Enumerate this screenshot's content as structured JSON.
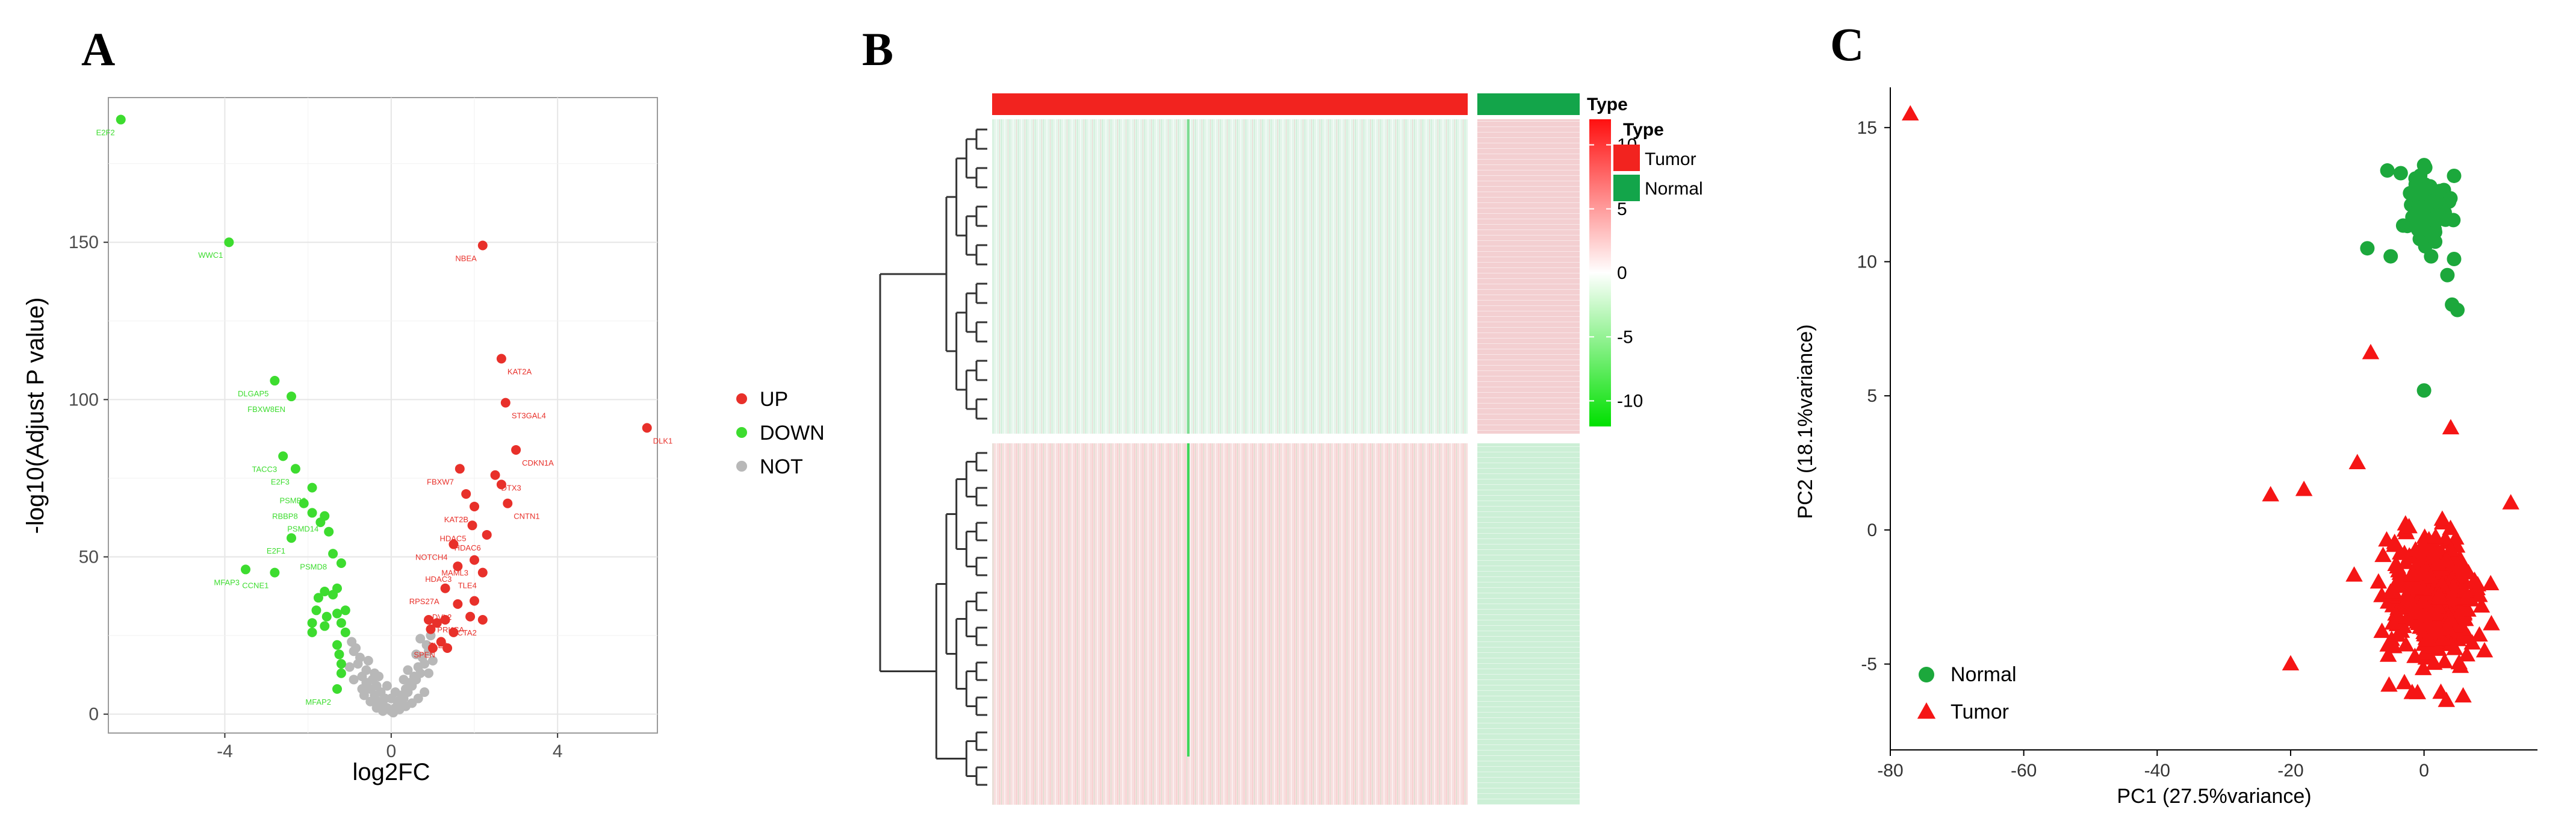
{
  "panels": [
    "A",
    "B",
    "C"
  ],
  "chart_data": [
    {
      "type": "scatter",
      "id": "volcano",
      "xlabel": "log2FC",
      "ylabel": "-log10(Adjust P value)",
      "xlim": [
        -6.8,
        6.4
      ],
      "ylim": [
        -6,
        196
      ],
      "xticks": [
        -4,
        0,
        4
      ],
      "yticks": [
        0,
        50,
        100,
        150
      ],
      "grid": true,
      "legend": {
        "position": "right",
        "entries": [
          {
            "label": "UP",
            "color": "#e8302a"
          },
          {
            "label": "DOWN",
            "color": "#3ddc2f"
          },
          {
            "label": "NOT",
            "color": "#b8b8b8"
          }
        ]
      },
      "series": [
        {
          "name": "UP",
          "color": "#e8302a",
          "points": [
            [
              2.2,
              149
            ],
            [
              2.65,
              113
            ],
            [
              2.75,
              99
            ],
            [
              3.0,
              84
            ],
            [
              6.15,
              91
            ],
            [
              2.5,
              76
            ],
            [
              1.65,
              78
            ],
            [
              2.8,
              67
            ],
            [
              1.8,
              70
            ],
            [
              2.65,
              73
            ],
            [
              2.0,
              66
            ],
            [
              1.95,
              60
            ],
            [
              1.5,
              54
            ],
            [
              2.3,
              57
            ],
            [
              1.6,
              47
            ],
            [
              2.0,
              49
            ],
            [
              2.2,
              45
            ],
            [
              1.3,
              40
            ],
            [
              1.6,
              35
            ],
            [
              1.9,
              31
            ],
            [
              2.0,
              36
            ],
            [
              1.1,
              29
            ],
            [
              1.3,
              30
            ],
            [
              1.2,
              23
            ],
            [
              1.5,
              26
            ],
            [
              2.2,
              30
            ],
            [
              1.0,
              21
            ],
            [
              0.9,
              30
            ],
            [
              0.95,
              27
            ],
            [
              1.35,
              21
            ]
          ]
        },
        {
          "name": "DOWN",
          "color": "#3ddc2f",
          "points": [
            [
              -6.5,
              189
            ],
            [
              -3.9,
              150
            ],
            [
              -2.8,
              106
            ],
            [
              -2.4,
              101
            ],
            [
              -2.6,
              82
            ],
            [
              -2.3,
              78
            ],
            [
              -1.9,
              72
            ],
            [
              -2.1,
              67
            ],
            [
              -1.9,
              64
            ],
            [
              -1.6,
              63
            ],
            [
              -1.7,
              61
            ],
            [
              -1.5,
              58
            ],
            [
              -1.4,
              51
            ],
            [
              -1.2,
              48
            ],
            [
              -2.4,
              56
            ],
            [
              -3.5,
              46
            ],
            [
              -2.8,
              45
            ],
            [
              -1.75,
              37
            ],
            [
              -1.6,
              39
            ],
            [
              -1.4,
              38
            ],
            [
              -1.3,
              40
            ],
            [
              -1.8,
              33
            ],
            [
              -1.55,
              31
            ],
            [
              -1.3,
              32
            ],
            [
              -1.9,
              29
            ],
            [
              -1.6,
              28
            ],
            [
              -1.1,
              33
            ],
            [
              -1.2,
              29
            ],
            [
              -1.9,
              26
            ],
            [
              -1.1,
              26
            ],
            [
              -1.3,
              22
            ],
            [
              -1.2,
              13
            ],
            [
              -1.25,
              19
            ],
            [
              -1.2,
              16
            ],
            [
              -1.3,
              8
            ]
          ]
        },
        {
          "name": "NOT",
          "color": "#b8b8b8",
          "points": [
            [
              -0.9,
              20
            ],
            [
              -0.8,
              16
            ],
            [
              -0.7,
              12
            ],
            [
              -0.6,
              10
            ],
            [
              -0.5,
              8
            ],
            [
              -0.4,
              6
            ],
            [
              -0.3,
              4
            ],
            [
              -0.2,
              3
            ],
            [
              -0.1,
              2
            ],
            [
              0.0,
              1
            ],
            [
              0.1,
              2
            ],
            [
              0.2,
              3
            ],
            [
              0.3,
              5
            ],
            [
              0.4,
              7
            ],
            [
              0.5,
              9
            ],
            [
              0.6,
              11
            ],
            [
              0.7,
              13
            ],
            [
              0.8,
              16
            ],
            [
              0.9,
              20
            ],
            [
              -0.75,
              18
            ],
            [
              -0.6,
              14
            ],
            [
              -0.45,
              11
            ],
            [
              -0.35,
              9
            ],
            [
              -0.25,
              7
            ],
            [
              -0.15,
              5
            ],
            [
              0.15,
              4
            ],
            [
              0.25,
              6
            ],
            [
              0.35,
              8
            ],
            [
              0.45,
              10
            ],
            [
              0.55,
              12
            ],
            [
              0.65,
              15
            ],
            [
              0.75,
              18
            ],
            [
              0.85,
              22
            ],
            [
              0.95,
              25
            ],
            [
              -0.95,
              23
            ],
            [
              -0.85,
              21
            ],
            [
              -0.65,
              6
            ],
            [
              -0.5,
              4
            ],
            [
              -0.35,
              2
            ],
            [
              -0.2,
              1
            ],
            [
              0.05,
              0.5
            ],
            [
              0.2,
              1.5
            ],
            [
              0.35,
              2.5
            ],
            [
              0.5,
              3.5
            ],
            [
              0.65,
              5
            ],
            [
              0.8,
              7
            ],
            [
              -0.55,
              17
            ],
            [
              -0.4,
              13
            ],
            [
              0.4,
              14
            ],
            [
              0.6,
              19
            ],
            [
              0.7,
              24
            ],
            [
              -0.7,
              8
            ],
            [
              -0.3,
              12
            ],
            [
              0.3,
              11
            ],
            [
              0.1,
              7
            ],
            [
              -0.1,
              9
            ],
            [
              0.0,
              5
            ],
            [
              0.9,
              13
            ],
            [
              -0.9,
              11
            ],
            [
              1.0,
              17
            ],
            [
              -1.0,
              15
            ]
          ]
        }
      ],
      "annotations": [
        {
          "label": "E2F2",
          "at": [
            -6.5,
            189
          ],
          "color": "#3ddc2f"
        },
        {
          "label": "WWC1",
          "at": [
            -3.9,
            150
          ],
          "color": "#3ddc2f"
        },
        {
          "label": "DLGAP5",
          "at": [
            -2.8,
            106
          ],
          "color": "#3ddc2f"
        },
        {
          "label": "FBXW8EN",
          "at": [
            -2.4,
            101
          ],
          "color": "#3ddc2f"
        },
        {
          "label": "TACC3",
          "at": [
            -2.6,
            82
          ],
          "color": "#3ddc2f"
        },
        {
          "label": "E2F3",
          "at": [
            -2.3,
            78
          ],
          "color": "#3ddc2f"
        },
        {
          "label": "RBBP8",
          "at": [
            -2.1,
            67
          ],
          "color": "#3ddc2f"
        },
        {
          "label": "PSMB2",
          "at": [
            -1.9,
            72
          ],
          "color": "#3ddc2f"
        },
        {
          "label": "PSMD14",
          "at": [
            -1.6,
            63
          ],
          "color": "#3ddc2f"
        },
        {
          "label": "E2F1",
          "at": [
            -2.4,
            56
          ],
          "color": "#3ddc2f"
        },
        {
          "label": "PSMD8",
          "at": [
            -1.4,
            51
          ],
          "color": "#3ddc2f"
        },
        {
          "label": "MFAP3",
          "at": [
            -3.5,
            46
          ],
          "color": "#3ddc2f"
        },
        {
          "label": "CCNE1",
          "at": [
            -2.8,
            45
          ],
          "color": "#3ddc2f"
        },
        {
          "label": "MFAP2",
          "at": [
            -1.3,
            8
          ],
          "color": "#3ddc2f"
        },
        {
          "label": "NBEA",
          "at": [
            2.2,
            149
          ],
          "color": "#e8302a"
        },
        {
          "label": "KAT2A",
          "at": [
            2.65,
            113
          ],
          "color": "#e8302a"
        },
        {
          "label": "ST3GAL4",
          "at": [
            2.75,
            99
          ],
          "color": "#e8302a"
        },
        {
          "label": "CDKN1A",
          "at": [
            3.0,
            84
          ],
          "color": "#e8302a"
        },
        {
          "label": "DLK1",
          "at": [
            6.15,
            91
          ],
          "color": "#e8302a"
        },
        {
          "label": "DTX3",
          "at": [
            2.5,
            76
          ],
          "color": "#e8302a"
        },
        {
          "label": "FBXW7",
          "at": [
            1.65,
            78
          ],
          "color": "#e8302a"
        },
        {
          "label": "KAT2B",
          "at": [
            2.0,
            66
          ],
          "color": "#e8302a"
        },
        {
          "label": "CNTN1",
          "at": [
            2.8,
            67
          ],
          "color": "#e8302a"
        },
        {
          "label": "NOTCH4",
          "at": [
            1.5,
            54
          ],
          "color": "#e8302a"
        },
        {
          "label": "HDAC5",
          "at": [
            1.95,
            60
          ],
          "color": "#e8302a"
        },
        {
          "label": "HDAC3",
          "at": [
            1.6,
            47
          ],
          "color": "#e8302a"
        },
        {
          "label": "HDAC6",
          "at": [
            2.3,
            57
          ],
          "color": "#e8302a"
        },
        {
          "label": "MAML3",
          "at": [
            2.0,
            49
          ],
          "color": "#e8302a"
        },
        {
          "label": "DVL2",
          "at": [
            1.6,
            35
          ],
          "color": "#e8302a"
        },
        {
          "label": "TLE4",
          "at": [
            2.2,
            45
          ],
          "color": "#e8302a"
        },
        {
          "label": "RPS27A",
          "at": [
            1.3,
            40
          ],
          "color": "#e8302a"
        },
        {
          "label": "PRKCA",
          "at": [
            1.9,
            31
          ],
          "color": "#e8302a"
        },
        {
          "label": "SPEN",
          "at": [
            1.2,
            23
          ],
          "color": "#e8302a"
        },
        {
          "label": "ACTA2",
          "at": [
            2.2,
            30
          ],
          "color": "#e8302a"
        },
        {
          "label": "TLE2",
          "at": [
            1.5,
            26
          ],
          "color": "#e8302a"
        }
      ]
    },
    {
      "type": "heatmap",
      "id": "heatmap",
      "title": "Type",
      "groups": [
        {
          "label": "Tumor",
          "color": "#f2231f"
        },
        {
          "label": "Normal",
          "color": "#13a54a"
        }
      ],
      "legend_title": "Type",
      "colorbar": {
        "ticks": [
          10,
          5,
          0,
          -5,
          -10
        ],
        "range": [
          -12,
          12
        ],
        "colors": [
          "#00e000",
          "#ffffff",
          "#ff1010"
        ]
      },
      "row_clusters": [
        {
          "name": "upper",
          "tumor_color": "#e4f5ea",
          "normal_color": "#f3cfd1"
        },
        {
          "name": "lower",
          "tumor_color": "#f7dede",
          "normal_color": "#ccefd6"
        }
      ]
    },
    {
      "type": "scatter",
      "id": "pca",
      "xlabel": "PC1 (27.5%variance)",
      "ylabel": "PC2 (18.1%variance)",
      "xlim": [
        -80,
        17
      ],
      "ylim": [
        -8.2,
        16.5
      ],
      "xticks": [
        -80,
        -60,
        -40,
        -20,
        0
      ],
      "yticks": [
        -5,
        0,
        5,
        10,
        15
      ],
      "legend": {
        "position": "bottom-left",
        "entries": [
          {
            "label": "Normal",
            "color": "#1ca83c",
            "shape": "circle"
          },
          {
            "label": "Tumor",
            "color": "#f51515",
            "shape": "triangle"
          }
        ]
      },
      "series": [
        {
          "name": "Normal",
          "color": "#1ca83c",
          "shape": "circle",
          "center": [
            0.5,
            12.0
          ],
          "spread": [
            2.5,
            1.3
          ],
          "count": 90,
          "extra_points": [
            [
              -5.5,
              13.4
            ],
            [
              -3.5,
              13.3
            ],
            [
              -8.5,
              10.5
            ],
            [
              -5,
              10.2
            ],
            [
              4.5,
              13.2
            ],
            [
              3.5,
              9.5
            ],
            [
              4.2,
              8.4
            ],
            [
              5,
              8.2
            ],
            [
              4.5,
              10.1
            ],
            [
              0,
              5.2
            ]
          ]
        },
        {
          "name": "Tumor",
          "color": "#f51515",
          "shape": "triangle",
          "center": [
            1.0,
            -2.5
          ],
          "spread": [
            6.0,
            2.1
          ],
          "count": 380,
          "extra_points": [
            [
              -77,
              15.5
            ],
            [
              -8,
              6.6
            ],
            [
              -20,
              -5
            ],
            [
              -23,
              1.3
            ],
            [
              -10,
              2.5
            ],
            [
              4,
              3.8
            ],
            [
              13,
              1.0
            ],
            [
              -18,
              1.5
            ]
          ]
        }
      ]
    }
  ]
}
